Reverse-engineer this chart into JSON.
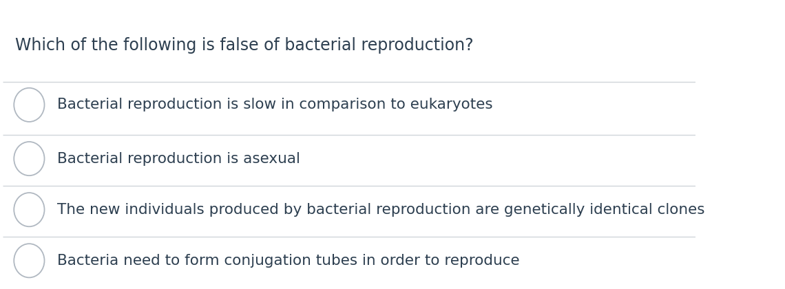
{
  "title": "Which of the following is false of bacterial reproduction?",
  "options": [
    "Bacterial reproduction is slow in comparison to eukaryotes",
    "Bacterial reproduction is asexual",
    "The new individuals produced by bacterial reproduction are genetically identical clones",
    "Bacteria need to form conjugation tubes in order to reproduce"
  ],
  "background_color": "#ffffff",
  "title_color": "#2d3f50",
  "option_color": "#2d3f50",
  "divider_color": "#d0d5da",
  "circle_edge_color": "#b0b8c1",
  "title_fontsize": 17,
  "option_fontsize": 15.5,
  "figsize": [
    11.4,
    4.2
  ],
  "dpi": 100
}
